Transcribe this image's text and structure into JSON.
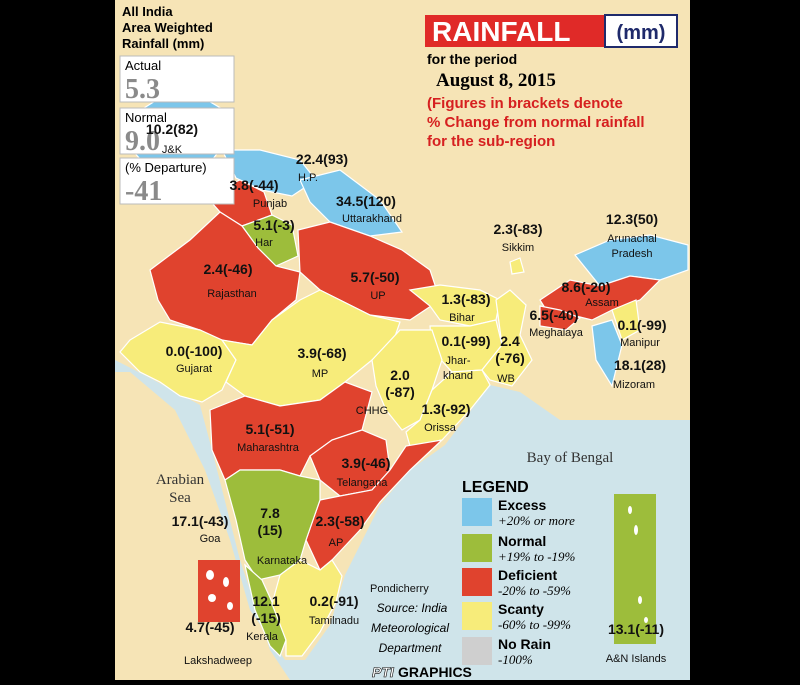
{
  "header": {
    "summary_title": [
      "All India",
      "Area Weighted",
      "Rainfall (mm)"
    ],
    "actual_label": "Actual",
    "actual_value": "5.3",
    "normal_label": "Normal",
    "normal_value": "9.0",
    "departure_label": "(% Departure)",
    "departure_value": "-41",
    "title": "RAINFALL",
    "unit": "(mm)",
    "period_label": "for the period",
    "date": "August 8, 2015",
    "note": [
      "(Figures in brackets denote",
      "% Change from normal rainfall",
      "for the sub-region"
    ]
  },
  "regions": [
    {
      "value": "10.2(82)",
      "label": [
        "J&K"
      ]
    },
    {
      "value": "22.4(93)",
      "label": [
        "H.P."
      ]
    },
    {
      "value": "34.5(120)",
      "label": [
        "Uttarakhand"
      ]
    },
    {
      "value": "3.8(-44)",
      "label": [
        "Punjab"
      ]
    },
    {
      "value": "5.1(-3)",
      "label": [
        "Har"
      ]
    },
    {
      "value": "2.4(-46)",
      "label": [
        "Rajasthan"
      ]
    },
    {
      "value": "5.7(-50)",
      "label": [
        "UP"
      ]
    },
    {
      "value": "0.0(-100)",
      "label": [
        "Gujarat"
      ]
    },
    {
      "value": "3.9(-68)",
      "label": [
        "MP"
      ]
    },
    {
      "value": "1.3(-83)",
      "label": [
        "Bihar"
      ]
    },
    {
      "value": "0.1(-99)",
      "label": [
        "Jhar-",
        "khand"
      ]
    },
    {
      "value": [
        "2.4",
        "(-76)"
      ],
      "label": [
        "WB"
      ]
    },
    {
      "value": [
        "2.0",
        "(-87)"
      ],
      "label": [
        "CHHG"
      ]
    },
    {
      "value": "1.3(-92)",
      "label": [
        "Orissa"
      ]
    },
    {
      "value": "2.3(-83)",
      "label": [
        "Sikkim"
      ]
    },
    {
      "value": "12.3(50)",
      "label": [
        "Arunachal",
        "Pradesh"
      ]
    },
    {
      "value": "8.6(-20)",
      "label": [
        "Assam"
      ]
    },
    {
      "value": "6.5(-40)",
      "label": [
        "Meghalaya"
      ]
    },
    {
      "value": "0.1(-99)",
      "label": [
        "Manipur"
      ]
    },
    {
      "value": "18.1(28)",
      "label": [
        "Mizoram"
      ]
    },
    {
      "value": "5.1(-51)",
      "label": [
        "Maharashtra"
      ]
    },
    {
      "value": "3.9(-46)",
      "label": [
        "Telangana"
      ]
    },
    {
      "value": "17.1(-43)",
      "label": [
        "Goa"
      ]
    },
    {
      "value": [
        "7.8",
        "(15)"
      ],
      "label": [
        "Karnataka"
      ]
    },
    {
      "value": "2.3(-58)",
      "label": [
        "AP"
      ]
    },
    {
      "value": [
        "12.1",
        "(-15)"
      ],
      "label": [
        "Kerala"
      ]
    },
    {
      "value": "0.2(-91)",
      "label": [
        "Tamilnadu"
      ]
    },
    {
      "value": "4.7(-45)",
      "label": [
        "Lakshadweep"
      ]
    },
    {
      "value": "13.1(-11)",
      "label": [
        "A&N Islands"
      ]
    }
  ],
  "places": {
    "pondicherry": "Pondicherry",
    "bay": "Bay of Bengal",
    "arabian_sea": [
      "Arabian",
      "Sea"
    ]
  },
  "source": [
    "Source: India",
    "Meteorological",
    "Department"
  ],
  "legend": {
    "title": "LEGEND",
    "items": [
      {
        "name": "Excess",
        "range": "+20% or more",
        "color": "#7cc6ea"
      },
      {
        "name": "Normal",
        "range": "+19% to -19%",
        "color": "#9dbd3b"
      },
      {
        "name": "Deficient",
        "range": "-20% to -59%",
        "color": "#e0432e"
      },
      {
        "name": "Scanty",
        "range": "-60% to -99%",
        "color": "#f7ec7a"
      },
      {
        "name": "No Rain",
        "range": "-100%",
        "color": "#cfcfcf"
      }
    ]
  },
  "footer": {
    "brand": "PTI",
    "label": "GRAPHICS"
  }
}
